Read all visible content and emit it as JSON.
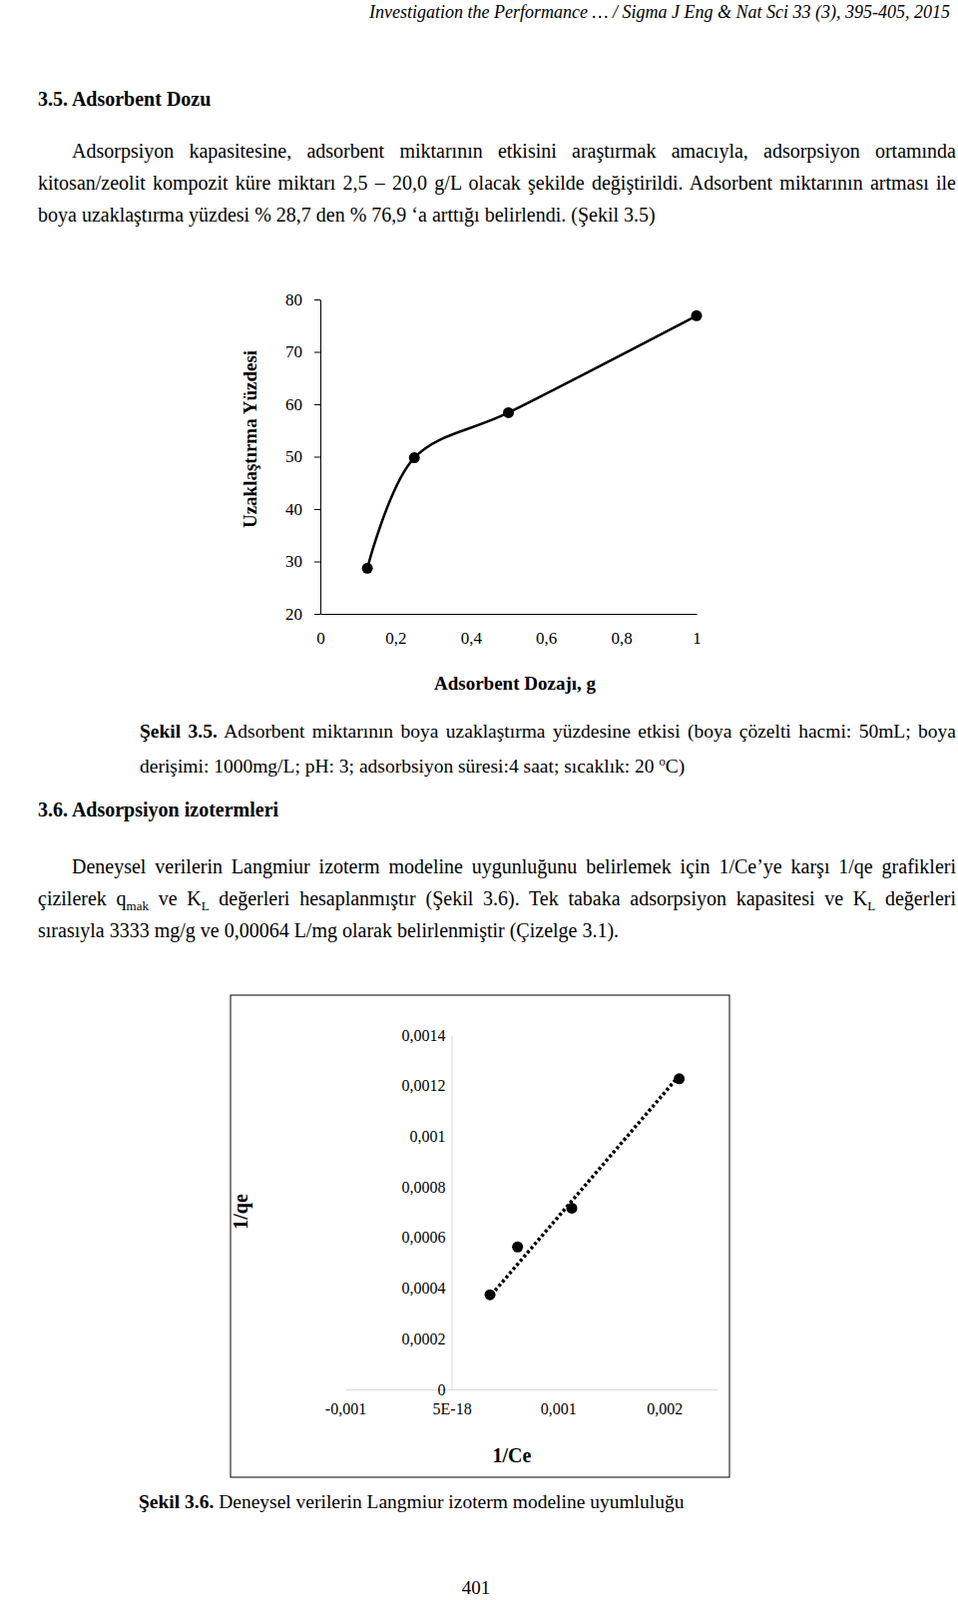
{
  "header": "Investigation the Performance … / Sigma J Eng & Nat Sci 33 (3), 395-405, 2015",
  "sections": [
    {
      "heading": "3.5. Adsorbent Dozu",
      "runs": [
        {
          "text": "Adsorpsiyon kapasitesine, adsorbent miktarının etkisini araştırmak amacıyla, adsorpsiyon ortamında kitosan/zeolit kompozit küre miktarı 2,5 – 20,0 g/L olacak şekilde değiştirildi. Adsorbent miktarının artması ile boya uzaklaştırma yüzdesi % 28,7 den % 76,9 ‘a arttığı belirlendi. (Şekil 3.5)"
        }
      ]
    },
    {
      "heading": "3.6. Adsorpsiyon izotermleri",
      "runs": [
        {
          "text": "Deneysel verilerin Langmiur izoterm modeline uygunluğunu belirlemek için 1/Ce’ye karşı 1/qe grafikleri çizilerek q"
        },
        {
          "text": "mak",
          "style": "sub"
        },
        {
          "text": " ve K"
        },
        {
          "text": "L",
          "style": "sub"
        },
        {
          "text": " değerleri hesaplanmıştır (Şekil 3.6). Tek tabaka adsorpsiyon kapasitesi ve  K"
        },
        {
          "text": "L",
          "style": "sub"
        },
        {
          "text": "  değerleri sırasıyla 3333 mg/g ve 0,00064 L/mg olarak belirlenmiştir (Çizelge 3.1)."
        }
      ]
    }
  ],
  "captions": [
    {
      "runs": [
        {
          "text": "Şekil 3.5.",
          "style": "bold"
        },
        {
          "text": " Adsorbent miktarının boya uzaklaştırma yüzdesine etkisi (boya çözelti hacmi: 50mL; boya derişimi: 1000mg/L; pH: 3; adsorbsiyon süresi:4 saat; sıcaklık: 20 "
        },
        {
          "text": "o",
          "style": "sup"
        },
        {
          "text": "C)"
        }
      ]
    },
    {
      "runs": [
        {
          "text": "Şekil 3.6.",
          "style": "bold"
        },
        {
          "text": " Deneysel verilerin Langmiur izoterm modeline uyumluluğu"
        }
      ]
    }
  ],
  "chart_data": [
    {
      "type": "line",
      "x_label": "Adsorbent Dozajı, g",
      "y_label": "Uzaklaştırma Yüzdesi",
      "x": [
        0.125,
        0.25,
        0.5,
        1
      ],
      "values": [
        28.7,
        49.8,
        58.4,
        76.9
      ],
      "color": "#000000",
      "marker": "circle",
      "xlim": [
        0,
        1
      ],
      "ylim": [
        20,
        80
      ],
      "xticks": [
        0,
        {
          "value": 0.2,
          "label": "0,2"
        },
        {
          "value": 0.4,
          "label": "0,4"
        },
        {
          "value": 0.6,
          "label": "0,6"
        },
        {
          "value": 0.8,
          "label": "0,8"
        },
        1
      ],
      "yticks": [
        20,
        30,
        40,
        50,
        60,
        70,
        80
      ]
    },
    {
      "type": "scatter",
      "x_label": "1/Ce",
      "y_label": "1/qe",
      "xlim": [
        -0.001,
        0.0025
      ],
      "ylim": [
        0,
        0.0014
      ],
      "xticks": [
        {
          "value": -0.001,
          "label": "-0,001"
        },
        {
          "value": 5e-18,
          "label": "5E-18"
        },
        {
          "value": 0.001,
          "label": "0,001"
        },
        {
          "value": 0.002,
          "label": "0,002"
        }
      ],
      "yticks": [
        0,
        {
          "value": 0.0002,
          "label": "0,0002"
        },
        {
          "value": 0.0004,
          "label": "0,0004"
        },
        {
          "value": 0.0006,
          "label": "0,0006"
        },
        {
          "value": 0.0008,
          "label": "0,0008"
        },
        {
          "value": 0.001,
          "label": "0,001"
        },
        {
          "value": 0.0012,
          "label": "0,0012"
        },
        {
          "value": 0.0014,
          "label": "0,0014"
        }
      ],
      "series": [
        {
          "type": "scatter",
          "marker": "circle",
          "color": "#000000",
          "x": [
            0.000361,
            0.00062,
            0.00113,
            0.00214
          ],
          "values": [
            0.000374,
            0.000563,
            0.000716,
            0.001227
          ]
        },
        {
          "type": "line",
          "line_style": "dotted",
          "color": "#000000",
          "x": [
            0.000342,
            0.00213
          ],
          "values": [
            0.000358,
            0.001235
          ]
        }
      ]
    }
  ],
  "page_number": "401"
}
